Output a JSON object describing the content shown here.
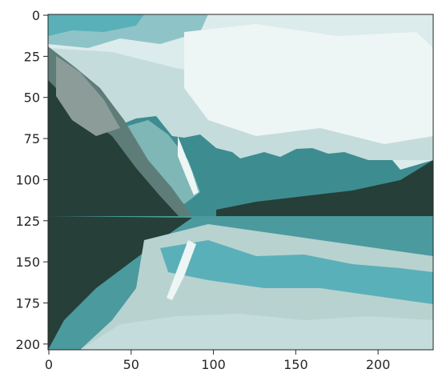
{
  "chart_data": {
    "type": "image",
    "title": "",
    "xlabel": "",
    "ylabel": "",
    "image_width": 234,
    "image_height": 204,
    "xlim": [
      -0.5,
      233.5
    ],
    "ylim": [
      203.5,
      -0.5
    ],
    "x_ticks": [
      0,
      50,
      100,
      150,
      200
    ],
    "y_ticks": [
      0,
      25,
      50,
      75,
      100,
      125,
      150,
      175,
      200
    ],
    "x_tick_labels": [
      "0",
      "50",
      "100",
      "150",
      "200"
    ],
    "y_tick_labels": [
      "0",
      "25",
      "50",
      "75",
      "100",
      "125",
      "150",
      "175",
      "200"
    ],
    "grid": false,
    "image_subject": "posterized photo of mountain lake with reflection",
    "palette": {
      "sky_light": "#e6f1f1",
      "sky_mid": "#c4dcdc",
      "sky_teal": "#5ab0b8",
      "mountain_teal": "#3d8c90",
      "rock_grey": "#8c9c98",
      "forest_dark": "#263f38",
      "water_teal": "#4a9a9e",
      "water_light": "#b8d2d0"
    }
  }
}
